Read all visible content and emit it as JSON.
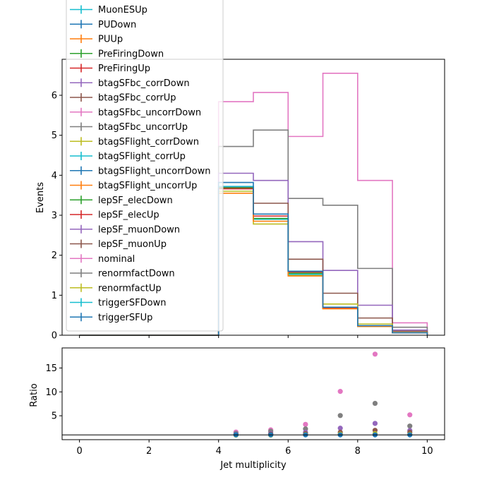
{
  "chart_data": [
    {
      "type": "line",
      "step": "post",
      "ylabel": "Events",
      "xlim": [
        -0.5,
        10.5
      ],
      "ylim": [
        0,
        6.9
      ],
      "yticks": [
        0,
        1,
        2,
        3,
        4,
        5,
        6
      ],
      "xticks": [
        0,
        2,
        4,
        6,
        8,
        10
      ],
      "bin_edges": [
        4,
        5,
        6,
        7,
        8,
        9,
        10
      ],
      "series": [
        {
          "name": "nominal",
          "color": "#e377c2",
          "values": [
            5.84,
            6.07,
            4.97,
            6.55,
            3.87,
            0.31
          ]
        },
        {
          "name": "renormfactDown",
          "color": "#7f7f7f",
          "values": [
            4.72,
            5.13,
            3.42,
            3.25,
            1.67,
            0.2
          ]
        },
        {
          "name": "lepSF_muonDown",
          "color": "#9467bd",
          "values": [
            4.05,
            3.87,
            2.34,
            1.62,
            0.75,
            0.13
          ]
        },
        {
          "name": "lepSF_muonUp",
          "color": "#8c564b",
          "values": [
            3.7,
            3.3,
            1.9,
            1.05,
            0.43,
            0.1
          ]
        },
        {
          "name": "renormfactUp",
          "color": "#bcbd22",
          "values": [
            3.6,
            2.78,
            1.5,
            0.78,
            0.28,
            0.07
          ]
        },
        {
          "name": "triggerSFDown",
          "color": "#17becf",
          "values": [
            3.72,
            2.9,
            1.52,
            0.68,
            0.23,
            0.06
          ]
        },
        {
          "name": "lepSF_elecDown",
          "color": "#2ca02c",
          "values": [
            3.68,
            2.92,
            1.55,
            0.67,
            0.22,
            0.06
          ]
        },
        {
          "name": "lepSF_elecUp",
          "color": "#d62728",
          "values": [
            3.66,
            2.98,
            1.58,
            0.68,
            0.23,
            0.06
          ]
        },
        {
          "name": "btagSFlight_uncorrUp",
          "color": "#ff7f0e",
          "values": [
            3.55,
            2.85,
            1.48,
            0.66,
            0.22,
            0.06
          ]
        },
        {
          "name": "triggerSFUp",
          "color": "#1f77b4",
          "values": [
            3.82,
            3.03,
            1.6,
            0.7,
            0.24,
            0.06
          ]
        }
      ]
    },
    {
      "type": "scatter",
      "xlabel": "Jet multiplicity",
      "ylabel": "Ratio",
      "xlim": [
        -0.5,
        10.5
      ],
      "ylim": [
        0,
        19.2
      ],
      "yticks": [
        5,
        10,
        15
      ],
      "xticks": [
        0,
        2,
        4,
        6,
        8,
        10
      ],
      "reference_line": 1,
      "x": [
        4.5,
        5.5,
        6.5,
        7.5,
        8.5,
        9.5
      ],
      "series": [
        {
          "color": "#e377c2",
          "values": [
            1.6,
            2.05,
            3.2,
            10.1,
            17.9,
            5.2
          ]
        },
        {
          "color": "#7f7f7f",
          "values": [
            1.3,
            1.75,
            2.25,
            5.05,
            7.6,
            2.85
          ]
        },
        {
          "color": "#9467bd",
          "values": [
            1.1,
            1.3,
            1.55,
            2.4,
            3.4,
            1.9
          ]
        },
        {
          "color": "#8c564b",
          "values": [
            1.0,
            1.15,
            1.25,
            1.55,
            1.95,
            1.55
          ]
        },
        {
          "color": "#bcbd22",
          "values": [
            0.95,
            0.95,
            1.05,
            1.15,
            1.25,
            1.1
          ]
        },
        {
          "color": "#1f77b4",
          "values": [
            1.0,
            1.0,
            1.0,
            1.0,
            1.0,
            1.0
          ]
        }
      ]
    }
  ],
  "legend": {
    "placement": "upper-left",
    "entries": [
      {
        "label": "MuonESUp",
        "color": "#17becf"
      },
      {
        "label": "PUDown",
        "color": "#1f77b4"
      },
      {
        "label": "PUUp",
        "color": "#ff7f0e"
      },
      {
        "label": "PreFiringDown",
        "color": "#2ca02c"
      },
      {
        "label": "PreFiringUp",
        "color": "#d62728"
      },
      {
        "label": "btagSFbc_corrDown",
        "color": "#9467bd"
      },
      {
        "label": "btagSFbc_corrUp",
        "color": "#8c564b"
      },
      {
        "label": "btagSFbc_uncorrDown",
        "color": "#e377c2"
      },
      {
        "label": "btagSFbc_uncorrUp",
        "color": "#7f7f7f"
      },
      {
        "label": "btagSFlight_corrDown",
        "color": "#bcbd22"
      },
      {
        "label": "btagSFlight_corrUp",
        "color": "#17becf"
      },
      {
        "label": "btagSFlight_uncorrDown",
        "color": "#1f77b4"
      },
      {
        "label": "btagSFlight_uncorrUp",
        "color": "#ff7f0e"
      },
      {
        "label": "lepSF_elecDown",
        "color": "#2ca02c"
      },
      {
        "label": "lepSF_elecUp",
        "color": "#d62728"
      },
      {
        "label": "lepSF_muonDown",
        "color": "#9467bd"
      },
      {
        "label": "lepSF_muonUp",
        "color": "#8c564b"
      },
      {
        "label": "nominal",
        "color": "#e377c2"
      },
      {
        "label": "renormfactDown",
        "color": "#7f7f7f"
      },
      {
        "label": "renormfactUp",
        "color": "#bcbd22"
      },
      {
        "label": "triggerSFDown",
        "color": "#17becf"
      },
      {
        "label": "triggerSFUp",
        "color": "#1f77b4"
      }
    ]
  }
}
